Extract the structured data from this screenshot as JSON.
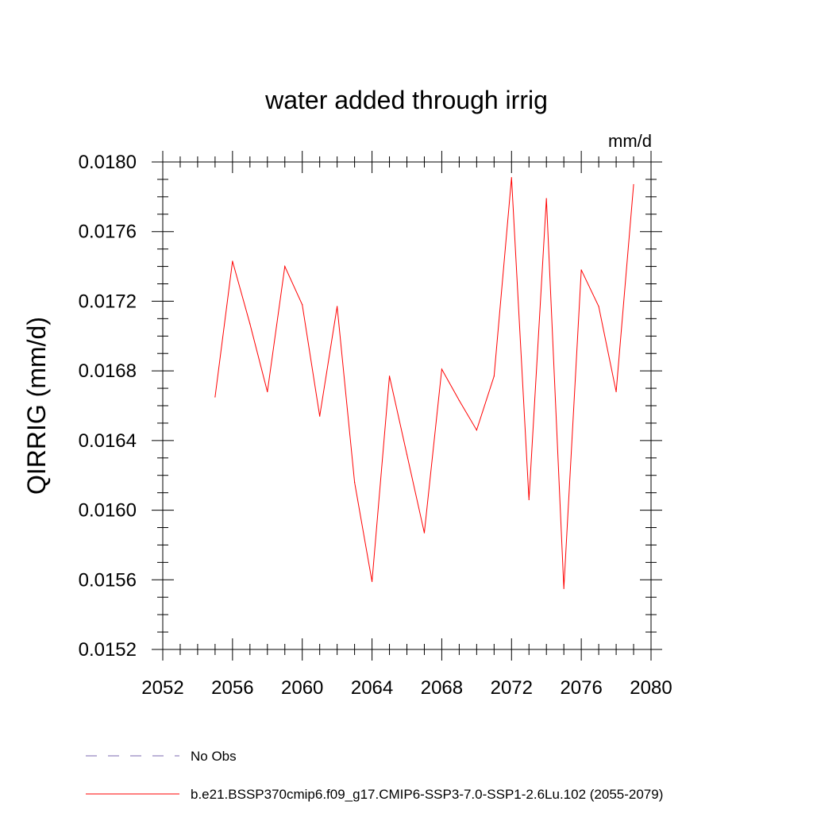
{
  "chart_data": {
    "type": "line",
    "title": "water added through irrig",
    "units_label": "mm/d",
    "ylabel": "QIRRIG  (mm/d)",
    "xlabel": "",
    "xlim": [
      2052,
      2080
    ],
    "ylim": [
      0.0152,
      0.018
    ],
    "x_ticks": [
      "2052",
      "2056",
      "2060",
      "2064",
      "2068",
      "2072",
      "2076",
      "2080"
    ],
    "y_ticks": [
      "0.0152",
      "0.0156",
      "0.0160",
      "0.0164",
      "0.0168",
      "0.0172",
      "0.0176",
      "0.0180"
    ],
    "x_tick_values": [
      2052,
      2056,
      2060,
      2064,
      2068,
      2072,
      2076,
      2080
    ],
    "y_tick_values": [
      0.0152,
      0.0156,
      0.016,
      0.0164,
      0.0168,
      0.0172,
      0.0176,
      0.018
    ],
    "x_minor_step": 1,
    "y_minor_step": 0.0001,
    "grid": false,
    "legend_position": "bottom",
    "series": [
      {
        "name": "b.e21.BSSP370cmip6.f09_g17.CMIP6-SSP3-7.0-SSP1-2.6Lu.102 (2055-2079)",
        "color": "#ff0000",
        "style": "solid",
        "x": [
          2055,
          2056,
          2057,
          2058,
          2059,
          2060,
          2061,
          2062,
          2063,
          2064,
          2065,
          2066,
          2067,
          2068,
          2069,
          2070,
          2071,
          2072,
          2073,
          2074,
          2075,
          2076,
          2077,
          2078,
          2079
        ],
        "values": [
          0.01665,
          0.01743,
          0.01707,
          0.01668,
          0.0174,
          0.01718,
          0.01654,
          0.01717,
          0.01616,
          0.01559,
          0.01677,
          0.01632,
          0.01587,
          0.01681,
          0.01663,
          0.01646,
          0.01677,
          0.01791,
          0.01606,
          0.01779,
          0.01555,
          0.01738,
          0.01717,
          0.01668,
          0.01787
        ]
      }
    ],
    "legend": [
      {
        "label": "No Obs",
        "color": "#7b68b0",
        "style": "dashed"
      },
      {
        "label": "b.e21.BSSP370cmip6.f09_g17.CMIP6-SSP3-7.0-SSP1-2.6Lu.102 (2055-2079)",
        "color": "#ff0000",
        "style": "solid"
      }
    ]
  }
}
